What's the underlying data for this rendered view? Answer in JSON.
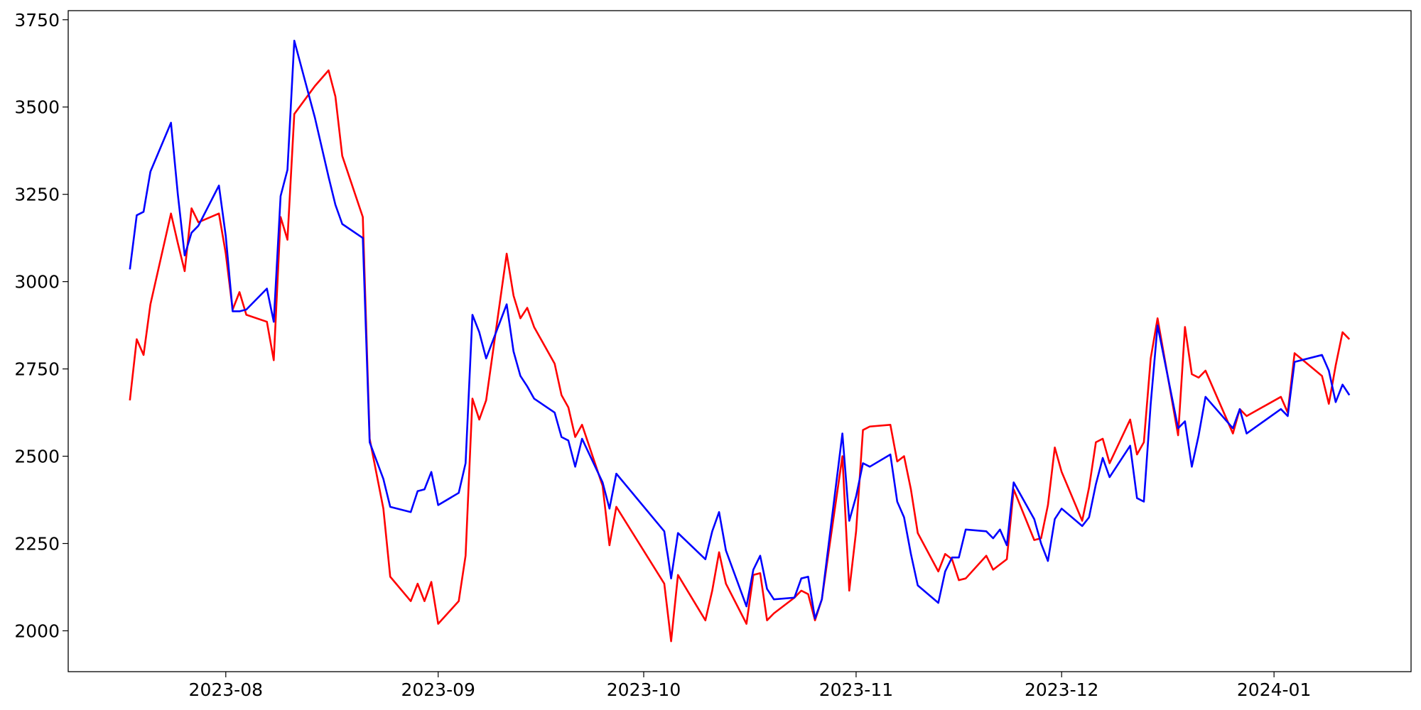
{
  "chart_data": {
    "type": "line",
    "x": [
      "2023-07-18",
      "2023-07-19",
      "2023-07-20",
      "2023-07-21",
      "2023-07-24",
      "2023-07-25",
      "2023-07-26",
      "2023-07-27",
      "2023-07-28",
      "2023-07-31",
      "2023-08-01",
      "2023-08-02",
      "2023-08-03",
      "2023-08-04",
      "2023-08-07",
      "2023-08-08",
      "2023-08-09",
      "2023-08-10",
      "2023-08-11",
      "2023-08-14",
      "2023-08-16",
      "2023-08-17",
      "2023-08-18",
      "2023-08-21",
      "2023-08-22",
      "2023-08-24",
      "2023-08-25",
      "2023-08-28",
      "2023-08-29",
      "2023-08-30",
      "2023-08-31",
      "2023-09-01",
      "2023-09-04",
      "2023-09-05",
      "2023-09-06",
      "2023-09-07",
      "2023-09-08",
      "2023-09-11",
      "2023-09-12",
      "2023-09-13",
      "2023-09-14",
      "2023-09-15",
      "2023-09-18",
      "2023-09-19",
      "2023-09-20",
      "2023-09-21",
      "2023-09-22",
      "2023-09-25",
      "2023-09-26",
      "2023-09-27",
      "2023-10-04",
      "2023-10-05",
      "2023-10-06",
      "2023-10-10",
      "2023-10-11",
      "2023-10-12",
      "2023-10-13",
      "2023-10-16",
      "2023-10-17",
      "2023-10-18",
      "2023-10-19",
      "2023-10-20",
      "2023-10-23",
      "2023-10-24",
      "2023-10-25",
      "2023-10-26",
      "2023-10-27",
      "2023-10-30",
      "2023-10-31",
      "2023-11-01",
      "2023-11-02",
      "2023-11-03",
      "2023-11-06",
      "2023-11-07",
      "2023-11-08",
      "2023-11-09",
      "2023-11-10",
      "2023-11-13",
      "2023-11-14",
      "2023-11-15",
      "2023-11-16",
      "2023-11-17",
      "2023-11-20",
      "2023-11-21",
      "2023-11-22",
      "2023-11-23",
      "2023-11-24",
      "2023-11-27",
      "2023-11-28",
      "2023-11-29",
      "2023-11-30",
      "2023-12-01",
      "2023-12-04",
      "2023-12-05",
      "2023-12-06",
      "2023-12-07",
      "2023-12-08",
      "2023-12-11",
      "2023-12-12",
      "2023-12-13",
      "2023-12-14",
      "2023-12-15",
      "2023-12-18",
      "2023-12-19",
      "2023-12-20",
      "2023-12-21",
      "2023-12-22",
      "2023-12-26",
      "2023-12-27",
      "2023-12-28",
      "2024-01-02",
      "2024-01-03",
      "2024-01-04",
      "2024-01-08",
      "2024-01-09",
      "2024-01-10",
      "2024-01-11",
      "2024-01-12"
    ],
    "series": [
      {
        "color": "#ff0000",
        "values": [
          2660,
          2835,
          2790,
          2935,
          3195,
          3110,
          3030,
          3210,
          3170,
          3195,
          3080,
          2920,
          2970,
          2905,
          2885,
          2775,
          3185,
          3120,
          3480,
          3560,
          3605,
          3530,
          3360,
          3185,
          2550,
          2350,
          2155,
          2085,
          2135,
          2085,
          2140,
          2020,
          2085,
          2215,
          2665,
          2605,
          2660,
          3080,
          2960,
          2895,
          2925,
          2870,
          2765,
          2675,
          2640,
          2555,
          2590,
          2415,
          2245,
          2355,
          2135,
          1970,
          2160,
          2030,
          2115,
          2225,
          2135,
          2020,
          2160,
          2165,
          2030,
          2050,
          2095,
          2115,
          2105,
          2030,
          2090,
          2500,
          2115,
          2285,
          2575,
          2585,
          2590,
          2485,
          2500,
          2405,
          2280,
          2170,
          2220,
          2205,
          2145,
          2150,
          2215,
          2175,
          2190,
          2205,
          2405,
          2260,
          2265,
          2360,
          2525,
          2455,
          2315,
          2410,
          2540,
          2550,
          2480,
          2605,
          2505,
          2540,
          2780,
          2895,
          2560,
          2870,
          2735,
          2725,
          2745,
          2565,
          2635,
          2615,
          2670,
          2625,
          2795,
          2730,
          2650,
          2760,
          2855,
          2835
        ]
      },
      {
        "color": "#0000ff",
        "values": [
          3035,
          3190,
          3200,
          3315,
          3455,
          3250,
          3075,
          3140,
          3160,
          3275,
          3130,
          2915,
          2915,
          2920,
          2980,
          2885,
          3245,
          3320,
          3690,
          3470,
          3300,
          3220,
          3165,
          3125,
          2540,
          2435,
          2355,
          2340,
          2400,
          2405,
          2455,
          2360,
          2395,
          2480,
          2905,
          2855,
          2780,
          2935,
          2800,
          2730,
          2700,
          2665,
          2625,
          2555,
          2545,
          2470,
          2550,
          2425,
          2350,
          2450,
          2285,
          2150,
          2280,
          2205,
          2285,
          2340,
          2230,
          2070,
          2175,
          2215,
          2120,
          2090,
          2095,
          2150,
          2155,
          2035,
          2090,
          2565,
          2315,
          2385,
          2480,
          2470,
          2505,
          2370,
          2325,
          2220,
          2130,
          2080,
          2170,
          2210,
          2210,
          2290,
          2285,
          2265,
          2290,
          2245,
          2425,
          2320,
          2250,
          2200,
          2320,
          2350,
          2300,
          2325,
          2420,
          2495,
          2440,
          2530,
          2380,
          2370,
          2650,
          2875,
          2580,
          2600,
          2470,
          2560,
          2670,
          2580,
          2635,
          2565,
          2635,
          2615,
          2770,
          2790,
          2745,
          2655,
          2705,
          2675
        ]
      }
    ],
    "xlim": [
      "2023-07-09",
      "2024-01-21"
    ],
    "xticks": [
      {
        "value": "2023-08-01",
        "label": "2023-08"
      },
      {
        "value": "2023-09-01",
        "label": "2023-09"
      },
      {
        "value": "2023-10-01",
        "label": "2023-10"
      },
      {
        "value": "2023-11-01",
        "label": "2023-11"
      },
      {
        "value": "2023-12-01",
        "label": "2023-12"
      },
      {
        "value": "2024-01-01",
        "label": "2024-01"
      }
    ],
    "ylim": [
      1883,
      3776
    ],
    "yticks": [
      2000,
      2250,
      2500,
      2750,
      3000,
      3250,
      3500,
      3750
    ],
    "grid": false
  }
}
